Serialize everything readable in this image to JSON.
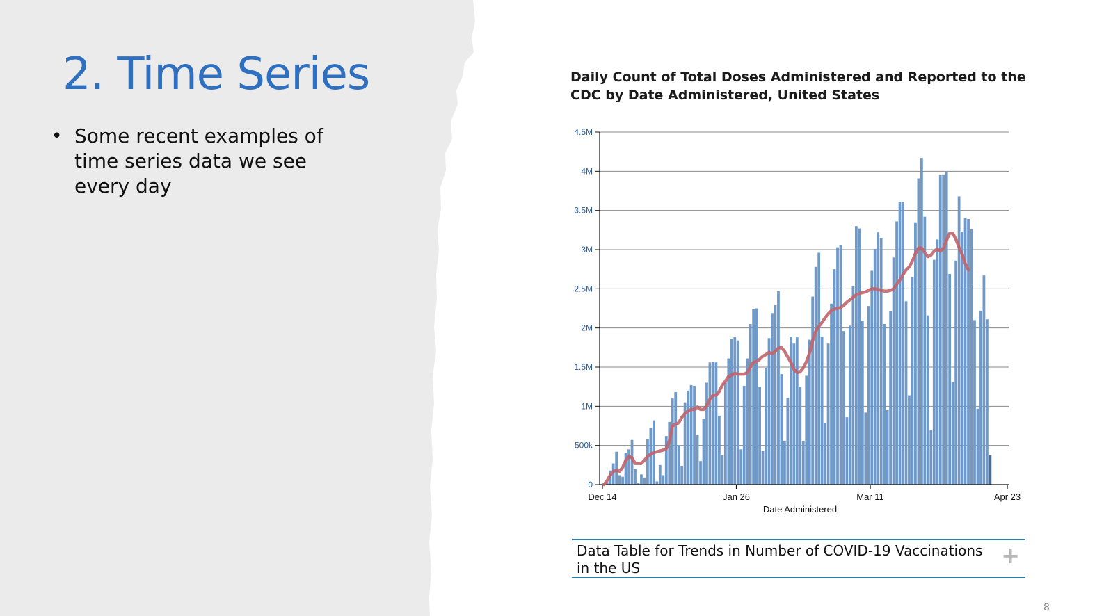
{
  "slide": {
    "title": "2. Time Series",
    "bullets": [
      "Some recent examples of time series data we see every day"
    ],
    "page_number": "8"
  },
  "colors": {
    "title": "#2f6fbf",
    "bar": "#6f99c8",
    "bar_recent": "#4e6c8d",
    "moving_average": "#c1646b",
    "tick_label": "#2c5f9e",
    "table_border": "#2e7fa3",
    "paper_background": "#ebebeb"
  },
  "data_table_link": {
    "label": "Data Table for Trends in Number of COVID-19 Vaccinations in the US",
    "icon": "plus-icon"
  },
  "chart_data": {
    "type": "bar",
    "title": "Daily Count of Total Doses Administered and Reported to the CDC by Date Administered, United States",
    "xlabel": "Date Administered",
    "ylabel": "",
    "ylim": [
      0,
      4500000
    ],
    "yticks": [
      0,
      500000,
      1000000,
      1500000,
      2000000,
      2500000,
      3000000,
      3500000,
      4000000,
      4500000
    ],
    "ytick_labels": [
      "0",
      "500k",
      "1M",
      "1.5M",
      "2M",
      "2.5M",
      "3M",
      "3.5M",
      "4M",
      "4.5M"
    ],
    "xticks": [
      0,
      43,
      86,
      130
    ],
    "xtick_labels": [
      "Dec 14",
      "Jan 26",
      "Mar 11",
      "Apr 23"
    ],
    "grid": true,
    "recent_incomplete_from_index": 124,
    "series": [
      {
        "name": "Daily doses administered",
        "kind": "bar",
        "values": [
          20000,
          30000,
          180000,
          270000,
          420000,
          120000,
          100000,
          400000,
          450000,
          570000,
          200000,
          20000,
          130000,
          90000,
          580000,
          720000,
          820000,
          40000,
          250000,
          120000,
          620000,
          800000,
          1100000,
          1180000,
          500000,
          240000,
          1050000,
          1200000,
          1270000,
          1260000,
          630000,
          300000,
          840000,
          1300000,
          1560000,
          1570000,
          1560000,
          880000,
          380000,
          1310000,
          1610000,
          1860000,
          1890000,
          1840000,
          450000,
          1260000,
          1610000,
          2050000,
          2240000,
          2250000,
          1250000,
          430000,
          1490000,
          1870000,
          2190000,
          2290000,
          2470000,
          1410000,
          550000,
          1110000,
          1890000,
          1800000,
          1880000,
          1250000,
          550000,
          1390000,
          1850000,
          2400000,
          2780000,
          2960000,
          1890000,
          790000,
          1800000,
          2310000,
          2750000,
          3030000,
          3060000,
          1960000,
          860000,
          2030000,
          2530000,
          3300000,
          3270000,
          2090000,
          920000,
          2280000,
          2730000,
          3010000,
          3220000,
          3150000,
          2050000,
          950000,
          2210000,
          2900000,
          3360000,
          3610000,
          3610000,
          2340000,
          1140000,
          2650000,
          3340000,
          3910000,
          4170000,
          3420000,
          2160000,
          700000,
          2870000,
          3130000,
          3950000,
          3960000,
          3990000,
          2690000,
          1310000,
          2860000,
          3680000,
          3230000,
          3400000,
          3390000,
          3260000,
          2100000,
          970000,
          2220000,
          2670000,
          2110000,
          380000
        ]
      },
      {
        "name": "7-day moving average",
        "kind": "line",
        "values": [
          0,
          50000,
          120000,
          170000,
          180000,
          170000,
          220000,
          310000,
          360000,
          340000,
          270000,
          270000,
          270000,
          310000,
          360000,
          390000,
          410000,
          420000,
          430000,
          440000,
          460000,
          560000,
          750000,
          770000,
          790000,
          860000,
          910000,
          940000,
          960000,
          960000,
          990000,
          960000,
          960000,
          1010000,
          1090000,
          1140000,
          1140000,
          1190000,
          1270000,
          1320000,
          1380000,
          1400000,
          1420000,
          1410000,
          1410000,
          1410000,
          1430000,
          1500000,
          1560000,
          1570000,
          1600000,
          1640000,
          1660000,
          1690000,
          1670000,
          1700000,
          1740000,
          1750000,
          1700000,
          1630000,
          1560000,
          1470000,
          1430000,
          1440000,
          1490000,
          1570000,
          1680000,
          1840000,
          1960000,
          2020000,
          2070000,
          2130000,
          2180000,
          2220000,
          2240000,
          2250000,
          2260000,
          2290000,
          2330000,
          2360000,
          2390000,
          2420000,
          2440000,
          2450000,
          2460000,
          2480000,
          2500000,
          2500000,
          2490000,
          2480000,
          2470000,
          2470000,
          2480000,
          2500000,
          2560000,
          2610000,
          2680000,
          2740000,
          2780000,
          2850000,
          2950000,
          3020000,
          3020000,
          2960000,
          2910000,
          2930000,
          2980000,
          3010000,
          2980000,
          3020000,
          3120000,
          3210000,
          3210000,
          3130000,
          3030000,
          2940000,
          2820000,
          2740000
        ]
      }
    ]
  }
}
